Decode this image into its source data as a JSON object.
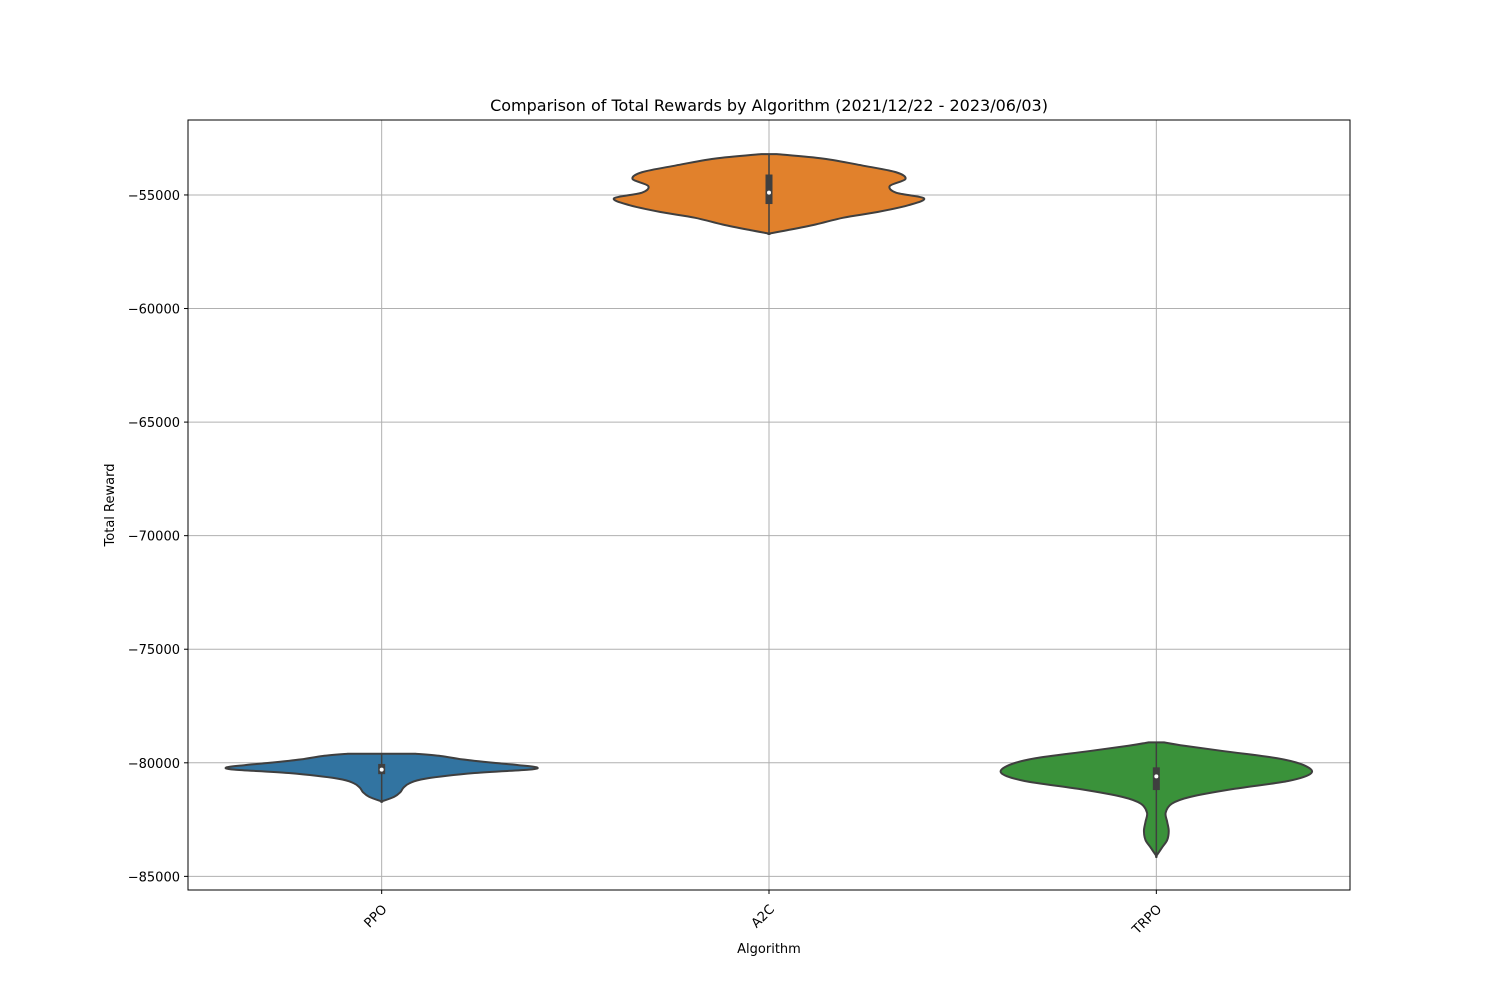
{
  "chart_data": {
    "type": "violin",
    "title": "Comparison of Total Rewards by Algorithm (2021/12/22 - 2023/06/03)",
    "xlabel": "Algorithm",
    "ylabel": "Total Reward",
    "categories": [
      "PPO",
      "A2C",
      "TRPO"
    ],
    "ylim": [
      -85600,
      -51700
    ],
    "yticks": [
      -55000,
      -60000,
      -65000,
      -70000,
      -75000,
      -80000,
      -85000
    ],
    "ytick_labels": [
      "−55000",
      "−60000",
      "−65000",
      "−70000",
      "−75000",
      "−80000",
      "−85000"
    ],
    "grid": true,
    "colors": [
      "#3274a1",
      "#e1812c",
      "#3a923a"
    ],
    "series": [
      {
        "category": "PPO",
        "color": "#3274a1",
        "min": -81700,
        "max": -79600,
        "median": -80300,
        "q1": -80500,
        "q3": -80050,
        "density_profile": [
          [
            -79600,
            0.22
          ],
          [
            -79700,
            0.38
          ],
          [
            -79850,
            0.52
          ],
          [
            -80000,
            0.72
          ],
          [
            -80100,
            0.88
          ],
          [
            -80200,
            1.0
          ],
          [
            -80300,
            0.95
          ],
          [
            -80450,
            0.6
          ],
          [
            -80700,
            0.28
          ],
          [
            -80900,
            0.18
          ],
          [
            -81100,
            0.14
          ],
          [
            -81300,
            0.12
          ],
          [
            -81500,
            0.08
          ],
          [
            -81700,
            0.0
          ]
        ]
      },
      {
        "category": "A2C",
        "color": "#e1812c",
        "min": -56700,
        "max": -53200,
        "median": -54900,
        "q1": -55400,
        "q3": -54100,
        "density_profile": [
          [
            -53200,
            0.05
          ],
          [
            -53400,
            0.35
          ],
          [
            -53700,
            0.6
          ],
          [
            -54000,
            0.82
          ],
          [
            -54300,
            0.88
          ],
          [
            -54600,
            0.78
          ],
          [
            -54900,
            0.82
          ],
          [
            -55150,
            1.0
          ],
          [
            -55450,
            0.9
          ],
          [
            -55750,
            0.7
          ],
          [
            -56000,
            0.48
          ],
          [
            -56300,
            0.3
          ],
          [
            -56550,
            0.12
          ],
          [
            -56700,
            0.0
          ]
        ]
      },
      {
        "category": "TRPO",
        "color": "#3a923a",
        "min": -84100,
        "max": -79100,
        "median": -80600,
        "q1": -81200,
        "q3": -80200,
        "density_profile": [
          [
            -79100,
            0.05
          ],
          [
            -79250,
            0.18
          ],
          [
            -79500,
            0.45
          ],
          [
            -79800,
            0.78
          ],
          [
            -80100,
            0.95
          ],
          [
            -80450,
            1.0
          ],
          [
            -80800,
            0.85
          ],
          [
            -81150,
            0.5
          ],
          [
            -81500,
            0.22
          ],
          [
            -81800,
            0.1
          ],
          [
            -82200,
            0.06
          ],
          [
            -82600,
            0.07
          ],
          [
            -83000,
            0.08
          ],
          [
            -83400,
            0.07
          ],
          [
            -83700,
            0.04
          ],
          [
            -84100,
            0.0
          ]
        ]
      }
    ]
  }
}
